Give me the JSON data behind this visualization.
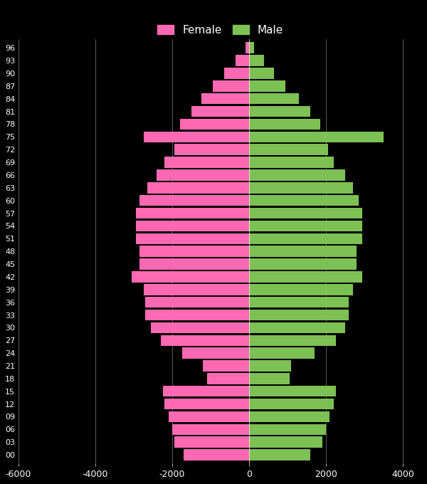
{
  "background_color": "#000000",
  "bar_color_female": "#FF69B4",
  "bar_color_male": "#7DC053",
  "grid_color": "#FFFFFF",
  "text_color": "#FFFFFF",
  "xlim": [
    -6000,
    4500
  ],
  "xticks": [
    -6000,
    -4000,
    -2000,
    0,
    2000,
    4000
  ],
  "xtick_labels": [
    "-6000",
    "-4000",
    "-2000",
    "0",
    "2000",
    "4000"
  ],
  "age_groups": [
    0,
    3,
    6,
    9,
    12,
    15,
    18,
    21,
    24,
    27,
    30,
    33,
    36,
    39,
    42,
    45,
    48,
    51,
    54,
    57,
    60,
    63,
    66,
    69,
    72,
    75,
    78,
    81,
    84,
    87,
    90,
    93,
    96
  ],
  "female_values": [
    -1700,
    -1950,
    -2000,
    -2100,
    -2200,
    -2250,
    -1100,
    -1200,
    -1750,
    -2300,
    -2550,
    -2700,
    -2700,
    -2750,
    -3050,
    -2850,
    -2850,
    -2950,
    -2950,
    -2950,
    -2850,
    -2650,
    -2400,
    -2200,
    -1950,
    -2750,
    -1800,
    -1500,
    -1250,
    -950,
    -650,
    -350,
    -100
  ],
  "male_values": [
    1600,
    1900,
    2000,
    2100,
    2200,
    2250,
    1050,
    1100,
    1700,
    2250,
    2500,
    2600,
    2600,
    2700,
    2950,
    2800,
    2800,
    2950,
    2950,
    2950,
    2850,
    2700,
    2500,
    2200,
    2050,
    3500,
    1850,
    1600,
    1300,
    950,
    650,
    380,
    130
  ],
  "bar_height": 2.6,
  "figsize": [
    6.0,
    6.8
  ],
  "dpi": 100
}
